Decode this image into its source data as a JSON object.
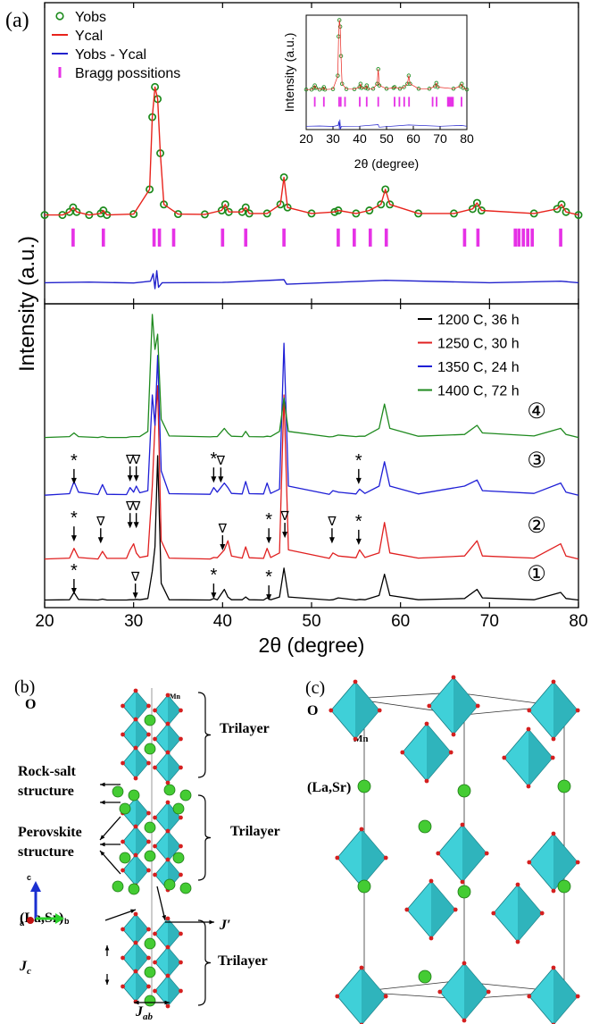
{
  "chart_data": [
    {
      "type": "line",
      "panel_label": "(a)",
      "ylabel": "Intensity (a.u.)",
      "xlim": [
        20,
        80
      ],
      "ylim": [
        0,
        100
      ],
      "legend": "upper left",
      "x": [
        20,
        22,
        22.8,
        23.2,
        23.6,
        25,
        26.3,
        26.6,
        27,
        30,
        31.8,
        32.1,
        32.4,
        32.7,
        33,
        33.4,
        35,
        38,
        39.9,
        40.3,
        40.7,
        42.2,
        42.6,
        43,
        45,
        46.5,
        46.9,
        47.3,
        50,
        52.6,
        53,
        55,
        56.5,
        57.8,
        58.3,
        58.8,
        62,
        66,
        68.1,
        68.6,
        69.1,
        75,
        77.6,
        78.1,
        78.6,
        80
      ],
      "series": [
        {
          "name": "Yobs",
          "color": "#1b8a1b",
          "marker": "circle",
          "values": [
            29.5,
            29.5,
            30.5,
            32,
            30.5,
            29.5,
            30,
            31,
            29.5,
            29.8,
            38,
            62,
            72,
            68,
            50,
            33,
            29.8,
            29.7,
            31,
            33,
            30.5,
            30.5,
            32,
            30,
            30,
            33,
            42,
            32,
            30,
            30.5,
            31,
            30,
            31,
            33,
            38,
            33,
            30,
            30,
            31.5,
            33.5,
            31,
            30,
            31.5,
            33,
            30.5,
            29.5
          ]
        },
        {
          "name": "Ycal",
          "color": "#e8231c",
          "values": [
            29.5,
            29.5,
            30.5,
            32,
            30.5,
            29.5,
            30,
            31,
            29.5,
            29.8,
            38,
            62,
            72,
            68,
            50,
            33,
            29.8,
            29.7,
            31,
            33,
            30.5,
            30.5,
            32,
            30,
            30,
            33,
            42,
            32,
            30,
            30.5,
            31,
            30,
            31,
            33,
            38,
            33,
            30,
            30,
            31.5,
            33.5,
            31,
            30,
            31.5,
            33,
            30.5,
            29.5
          ]
        },
        {
          "name": "Yobs - Ycal",
          "color": "#2222cc",
          "x": [
            20,
            25,
            30,
            31.9,
            32.2,
            32.4,
            32.6,
            32.8,
            33.2,
            40,
            46.9,
            47.2,
            58.3,
            70,
            78,
            80
          ],
          "values": [
            7,
            7.2,
            6.9,
            7.5,
            10,
            5,
            11,
            5.5,
            7,
            7.1,
            8,
            6.5,
            7.8,
            7,
            7.5,
            7
          ]
        },
        {
          "name": "Bragg possitions",
          "color": "#e632e6",
          "marker": "bar",
          "span": [
            19,
            25
          ],
          "x": [
            23.2,
            26.6,
            32.3,
            32.9,
            34.5,
            40,
            42.6,
            46.9,
            53,
            54.8,
            56.6,
            58.4,
            67.2,
            68.7,
            72.9,
            73.3,
            73.8,
            74.3,
            74.8,
            78
          ]
        }
      ],
      "inset": {
        "xlim": [
          20,
          80
        ],
        "ylim": [
          5,
          75
        ],
        "xticks": [
          20,
          30,
          40,
          50,
          60,
          70,
          80
        ],
        "xlabel": "2θ (degree)",
        "ylabel": "Intensity (a.u.)"
      }
    },
    {
      "type": "line",
      "xlabel": "2θ (degree)",
      "xlim": [
        20,
        80
      ],
      "ylim": [
        0,
        100
      ],
      "xticks": [
        20,
        30,
        40,
        50,
        60,
        70,
        80
      ],
      "legend": "upper right",
      "x": [
        20,
        22.8,
        23.3,
        23.8,
        26,
        26.5,
        27,
        29.2,
        29.6,
        30,
        30.3,
        30.7,
        31.6,
        32.1,
        32.4,
        32.7,
        33.1,
        34,
        38.6,
        39,
        39.4,
        40.2,
        40.6,
        41,
        42.2,
        42.6,
        43,
        44.6,
        45,
        45.4,
        46.4,
        46.9,
        47.4,
        52,
        52.4,
        53,
        55,
        55.4,
        56,
        57.6,
        58.2,
        58.8,
        62,
        67.2,
        68.6,
        69.2,
        75,
        78,
        78.6,
        80
      ],
      "series": [
        {
          "name": "1200 C, 36 h",
          "color": "#000000",
          "values": [
            2.5,
            2.6,
            5,
            2.7,
            2.5,
            2.8,
            2.5,
            2.5,
            2.6,
            2.6,
            2.7,
            2.6,
            3,
            12,
            20,
            50,
            8,
            2.6,
            2.5,
            3,
            2.6,
            6,
            3.5,
            2.6,
            2.6,
            3.5,
            2.6,
            2.5,
            3.2,
            2.6,
            3.5,
            13,
            3.5,
            2.5,
            2.6,
            3.2,
            2.5,
            2.7,
            2.6,
            4,
            11,
            4,
            2.6,
            3,
            6,
            3.2,
            2.6,
            5,
            3,
            2.5
          ]
        },
        {
          "name": "1250 C, 30 h",
          "color": "#e02020",
          "values": [
            16,
            16.3,
            19.5,
            16.5,
            16,
            18.5,
            16.2,
            16.2,
            19,
            21,
            18,
            16.5,
            17,
            40,
            60,
            73,
            22,
            16.3,
            16,
            16.5,
            16.4,
            19,
            22,
            17,
            16.3,
            20,
            16.4,
            16.2,
            19.5,
            16.5,
            18,
            70,
            19,
            16.2,
            18,
            17,
            16.4,
            19,
            16.5,
            18,
            28,
            18,
            16.3,
            17,
            22,
            17,
            16.3,
            21,
            17,
            16
          ]
        },
        {
          "name": "1350 C, 24 h",
          "color": "#1f1fd6",
          "values": [
            37,
            37.5,
            41.5,
            38,
            37.2,
            40.5,
            37.3,
            37.2,
            39.5,
            38,
            40,
            37.8,
            38.5,
            70,
            60,
            83,
            45,
            37.5,
            37.3,
            39.5,
            38,
            41,
            39.5,
            37.6,
            37.4,
            41.5,
            37.5,
            37.4,
            41,
            37.6,
            39,
            87,
            40,
            37.3,
            38.5,
            38,
            37.4,
            39,
            37.6,
            40,
            48,
            40,
            37.4,
            40,
            42,
            38.5,
            37.6,
            41,
            38,
            37
          ]
        },
        {
          "name": "1400 C, 72 h",
          "color": "#1f8a1f",
          "values": [
            56,
            56.3,
            57.5,
            56.3,
            56,
            56.3,
            56,
            56,
            56.2,
            56.3,
            56.3,
            56.3,
            58,
            96.5,
            85,
            90,
            62,
            56.5,
            56.2,
            56.3,
            56.3,
            59,
            57.5,
            56.4,
            56.3,
            58,
            56.3,
            56.2,
            56.4,
            56.3,
            58,
            69,
            58,
            56.2,
            56.3,
            56.8,
            56.3,
            56.4,
            56.4,
            59,
            67,
            59,
            56.4,
            57,
            60,
            57.5,
            56.5,
            59,
            57,
            56
          ]
        }
      ],
      "annotations": [
        {
          "text": "*",
          "x": 23.3,
          "y": 46.5
        },
        {
          "text": "∇",
          "x": 29.6,
          "y": 47.4
        },
        {
          "text": "∇",
          "x": 30.3,
          "y": 47.4
        },
        {
          "text": "*",
          "x": 39,
          "y": 47
        },
        {
          "text": "∇",
          "x": 39.8,
          "y": 47
        },
        {
          "text": "*",
          "x": 55.3,
          "y": 46.5
        },
        {
          "text": "*",
          "x": 23.3,
          "y": 27.6
        },
        {
          "text": "∇",
          "x": 26.3,
          "y": 27
        },
        {
          "text": "∇",
          "x": 29.6,
          "y": 32
        },
        {
          "text": "∇",
          "x": 30.3,
          "y": 32
        },
        {
          "text": "∇",
          "x": 40,
          "y": 24.7
        },
        {
          "text": "*",
          "x": 45.2,
          "y": 27
        },
        {
          "text": "∇",
          "x": 47,
          "y": 28.8
        },
        {
          "text": "∇",
          "x": 52.3,
          "y": 27
        },
        {
          "text": "*",
          "x": 55.3,
          "y": 26.5
        },
        {
          "text": "*",
          "x": 23.3,
          "y": 10.3
        },
        {
          "text": "∇",
          "x": 30.2,
          "y": 8.8
        },
        {
          "text": "*",
          "x": 39,
          "y": 8.8
        },
        {
          "text": "*",
          "x": 45.2,
          "y": 8.2
        }
      ],
      "curve_labels": [
        {
          "text": "④",
          "x": 75.3,
          "y": 62.4
        },
        {
          "text": "③",
          "x": 75.3,
          "y": 46.2
        },
        {
          "text": "②",
          "x": 75.3,
          "y": 24.7
        },
        {
          "text": "①",
          "x": 75.3,
          "y": 8.8
        }
      ]
    }
  ],
  "structure_b": {
    "label": "(b)",
    "oxygen": "O",
    "manganese": "Mn",
    "cation": "(La,Sr)",
    "trilayer": [
      "Trilayer",
      "Trilayer",
      "Trilayer"
    ],
    "rock_salt": [
      "Rock-salt",
      "structure"
    ],
    "perovskite": [
      "Perovskite",
      "structure"
    ],
    "interlayer": "J′",
    "jc": [
      "J",
      "c"
    ],
    "jab": [
      "J",
      "ab"
    ],
    "axes": [
      "c",
      "a",
      "b"
    ]
  },
  "structure_c": {
    "label": "(c)",
    "oxygen": "O",
    "manganese": "Mn",
    "cation": "(La,Sr)"
  }
}
